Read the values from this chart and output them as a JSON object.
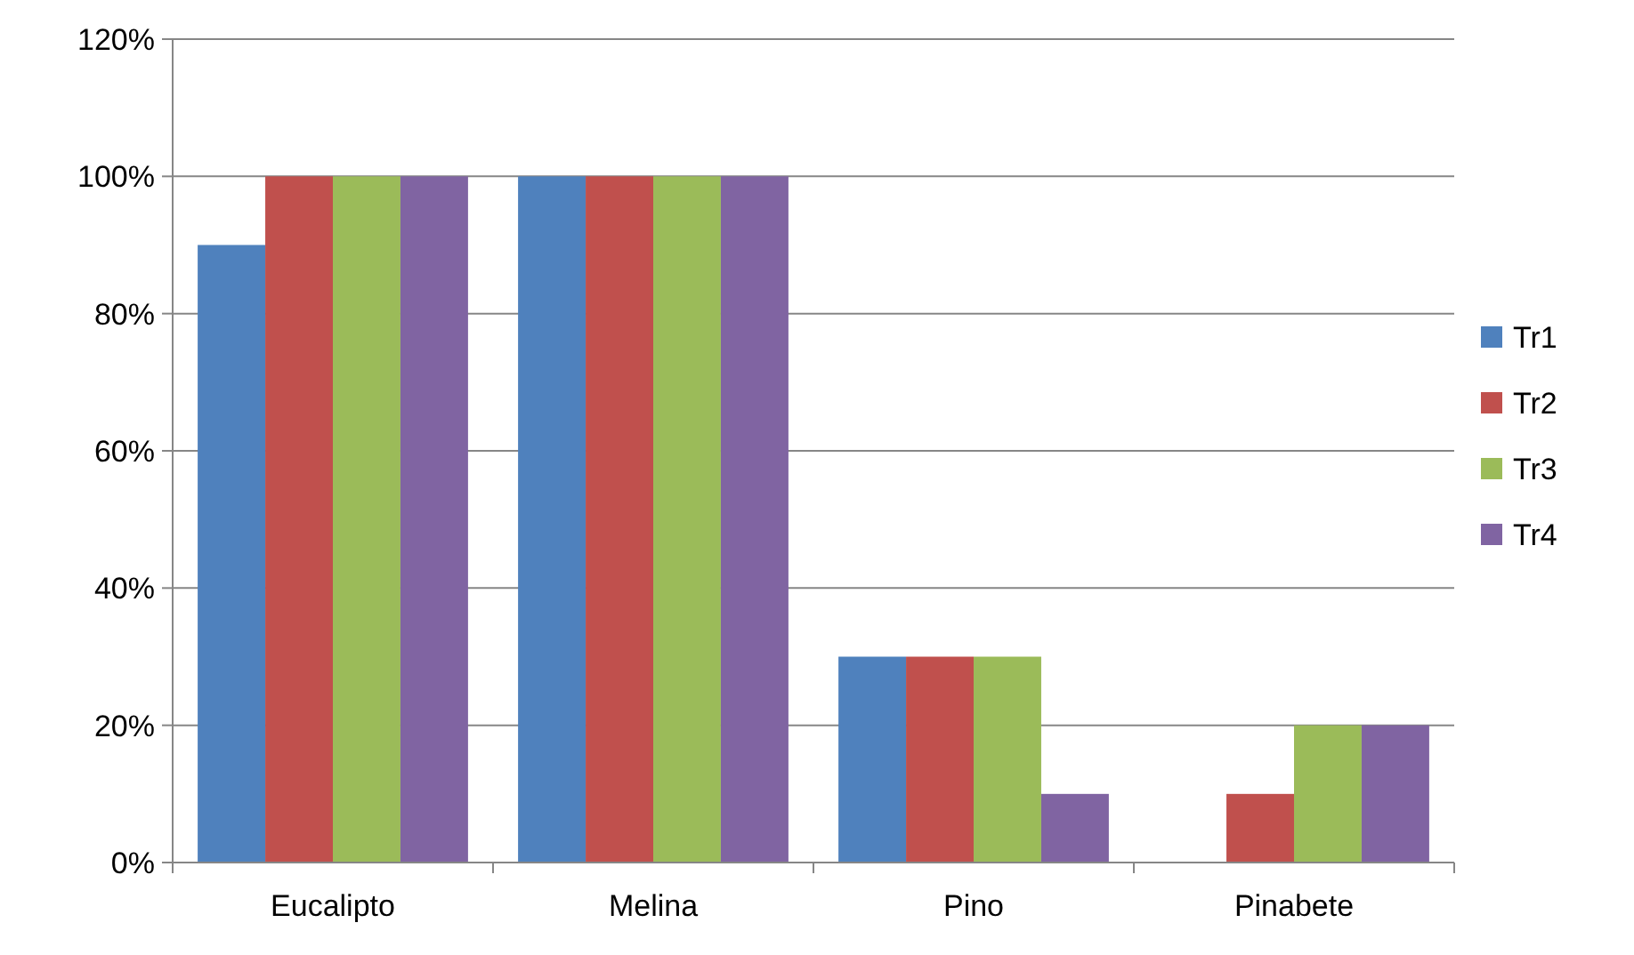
{
  "chart_data": {
    "type": "bar",
    "categories": [
      "Eucalipto",
      "Melina",
      "Pino",
      "Pinabete"
    ],
    "series": [
      {
        "name": "Tr1",
        "color": "#4f81bd",
        "values": [
          90,
          100,
          30,
          0
        ]
      },
      {
        "name": "Tr2",
        "color": "#c0504d",
        "values": [
          100,
          100,
          30,
          10
        ]
      },
      {
        "name": "Tr3",
        "color": "#9bbb59",
        "values": [
          100,
          100,
          30,
          20
        ]
      },
      {
        "name": "Tr4",
        "color": "#8064a2",
        "values": [
          100,
          100,
          10,
          20
        ]
      }
    ],
    "ylim": [
      0,
      120
    ],
    "yticks": [
      {
        "value": 0,
        "label": "0%"
      },
      {
        "value": 20,
        "label": "20%"
      },
      {
        "value": 40,
        "label": "40%"
      },
      {
        "value": 60,
        "label": "60%"
      },
      {
        "value": 80,
        "label": "80%"
      },
      {
        "value": 100,
        "label": "100%"
      },
      {
        "value": 120,
        "label": "120%"
      }
    ],
    "grid": "y",
    "legend": "right"
  }
}
